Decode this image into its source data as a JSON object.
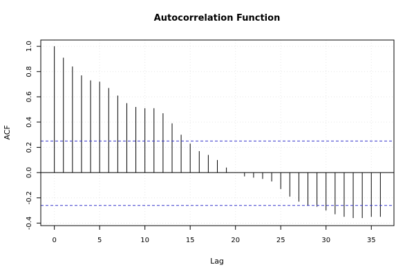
{
  "chart_data": {
    "type": "bar",
    "title": "Autocorrelation Function",
    "xlabel": "Lag",
    "ylabel": "ACF",
    "xlim": [
      -1.5,
      37.5
    ],
    "ylim": [
      -0.42,
      1.05
    ],
    "xticks": [
      0,
      5,
      10,
      15,
      20,
      25,
      30,
      35
    ],
    "yticks": [
      -0.4,
      -0.2,
      0.0,
      0.2,
      0.4,
      0.6,
      0.8,
      1.0
    ],
    "ytick_labels": [
      "-0.4",
      "-0.2",
      "0.0",
      "0.2",
      "0.4",
      "0.6",
      "0.8",
      "1.0"
    ],
    "grid": true,
    "confidence_bounds": [
      0.25,
      -0.26
    ],
    "confidence_color": "#3333cc",
    "lags": [
      0,
      1,
      2,
      3,
      4,
      5,
      6,
      7,
      8,
      9,
      10,
      11,
      12,
      13,
      14,
      15,
      16,
      17,
      18,
      19,
      20,
      21,
      22,
      23,
      24,
      25,
      26,
      27,
      28,
      29,
      30,
      31,
      32,
      33,
      34,
      35,
      36
    ],
    "values": [
      1.0,
      0.91,
      0.84,
      0.77,
      0.73,
      0.72,
      0.67,
      0.61,
      0.55,
      0.52,
      0.51,
      0.51,
      0.47,
      0.39,
      0.3,
      0.23,
      0.17,
      0.14,
      0.1,
      0.04,
      0.0,
      -0.03,
      -0.04,
      -0.05,
      -0.07,
      -0.13,
      -0.19,
      -0.23,
      -0.26,
      -0.27,
      -0.3,
      -0.33,
      -0.35,
      -0.36,
      -0.36,
      -0.35,
      -0.35
    ]
  }
}
